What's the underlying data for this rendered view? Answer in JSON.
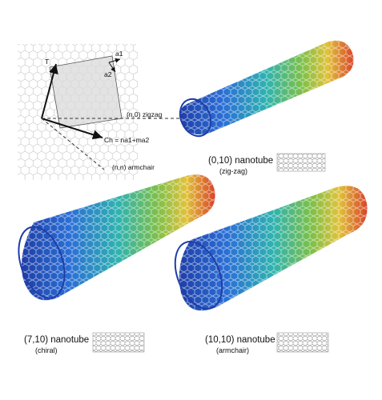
{
  "diagram": {
    "vector_a1": "a1",
    "vector_a2": "a2",
    "vector_T": "T",
    "zigzag_label": "(n,0) zigzag",
    "chiral_vector_label": "Ch = na1+ma2",
    "armchair_label": "(n,n) armchair"
  },
  "nanotubes": [
    {
      "id": "zigzag",
      "title": "(0,10) nanotube",
      "subtitle": "(zig-zag)"
    },
    {
      "id": "chiral",
      "title": "(7,10) nanotube",
      "subtitle": "(chiral)"
    },
    {
      "id": "armchair",
      "title": "(10,10) nanotube",
      "subtitle": "(armchair)"
    }
  ],
  "colors": {
    "gradient": [
      "#1f3ea8",
      "#2b6fd6",
      "#2fb3b0",
      "#7cc04a",
      "#e0c23a",
      "#d9452a"
    ],
    "lattice": "#c9c9c9",
    "cell_fill": "#d9d9d9",
    "arrow": "#111111"
  }
}
